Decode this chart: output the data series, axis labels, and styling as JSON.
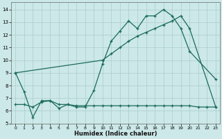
{
  "xlabel": "Humidex (Indice chaleur)",
  "background_color": "#cce8e8",
  "grid_color": "#aacccc",
  "line_color": "#1a6b5a",
  "xlim": [
    -0.5,
    23.5
  ],
  "ylim": [
    5,
    14.6
  ],
  "yticks": [
    5,
    6,
    7,
    8,
    9,
    10,
    11,
    12,
    13,
    14
  ],
  "xticks": [
    0,
    1,
    2,
    3,
    4,
    5,
    6,
    7,
    8,
    9,
    10,
    11,
    12,
    13,
    14,
    15,
    16,
    17,
    18,
    19,
    20,
    21,
    22,
    23
  ],
  "line1_x": [
    0,
    1,
    2,
    3,
    4,
    5,
    6,
    7,
    8,
    9,
    10,
    11,
    12,
    13,
    14,
    15,
    16,
    17,
    18,
    19,
    20,
    23
  ],
  "line1_y": [
    9.0,
    7.5,
    5.5,
    6.8,
    6.8,
    6.2,
    6.5,
    6.3,
    6.3,
    7.6,
    9.7,
    11.5,
    12.3,
    13.1,
    12.5,
    13.5,
    13.5,
    14.0,
    13.5,
    12.5,
    10.7,
    8.5
  ],
  "line2_x": [
    0,
    10,
    11,
    12,
    13,
    14,
    15,
    16,
    17,
    18,
    19,
    20,
    23
  ],
  "line2_y": [
    9.0,
    10.0,
    10.5,
    11.0,
    11.5,
    11.9,
    12.2,
    12.5,
    12.8,
    13.1,
    13.5,
    12.5,
    6.3
  ],
  "line3_x": [
    0,
    1,
    2,
    3,
    4,
    5,
    6,
    7,
    8,
    9,
    10,
    11,
    12,
    13,
    14,
    15,
    16,
    17,
    18,
    19,
    20,
    21,
    22,
    23
  ],
  "line3_y": [
    6.5,
    6.5,
    6.3,
    6.7,
    6.8,
    6.5,
    6.5,
    6.4,
    6.4,
    6.4,
    6.4,
    6.4,
    6.4,
    6.4,
    6.4,
    6.4,
    6.4,
    6.4,
    6.4,
    6.4,
    6.4,
    6.3,
    6.3,
    6.3
  ]
}
